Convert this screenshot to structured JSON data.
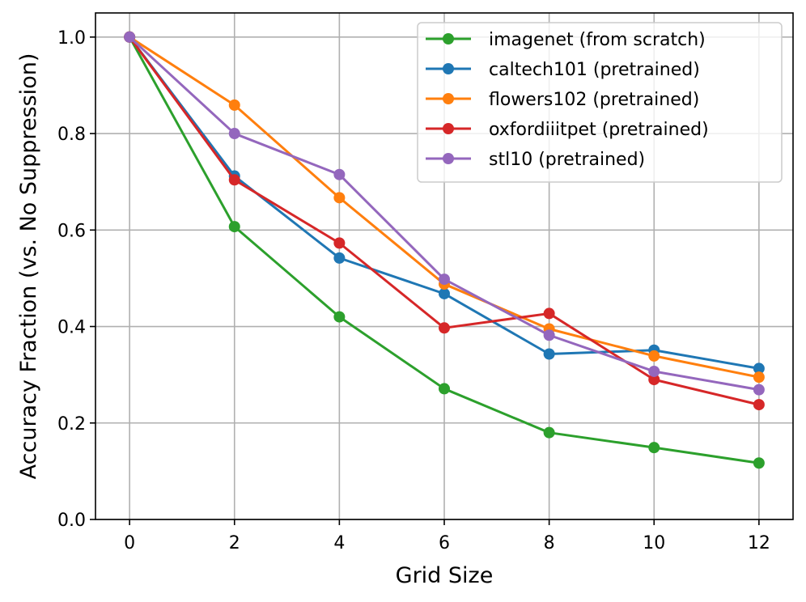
{
  "chart_data": {
    "type": "line",
    "title": "",
    "xlabel": "Grid Size",
    "ylabel": "Accuracy Fraction (vs. No Suppression)",
    "x": [
      0,
      2,
      4,
      6,
      8,
      10,
      12
    ],
    "xlim": [
      -0.65,
      12.65
    ],
    "ylim": [
      0.0,
      1.05
    ],
    "xticks": [
      0,
      2,
      4,
      6,
      8,
      10,
      12
    ],
    "xtick_labels": [
      "0",
      "2",
      "4",
      "6",
      "8",
      "10",
      "12"
    ],
    "yticks": [
      0.0,
      0.2,
      0.4,
      0.6,
      0.8,
      1.0
    ],
    "ytick_labels": [
      "0.0",
      "0.2",
      "0.4",
      "0.6",
      "0.8",
      "1.0"
    ],
    "grid": true,
    "legend_position": "top-right",
    "series": [
      {
        "name": "imagenet (from scratch)",
        "color": "#2ca02c",
        "values": [
          1.0,
          0.607,
          0.42,
          0.271,
          0.18,
          0.149,
          0.117
        ]
      },
      {
        "name": "caltech101 (pretrained)",
        "color": "#1f77b4",
        "values": [
          1.0,
          0.712,
          0.542,
          0.468,
          0.343,
          0.351,
          0.313
        ]
      },
      {
        "name": "flowers102 (pretrained)",
        "color": "#ff7f0e",
        "values": [
          1.0,
          0.859,
          0.667,
          0.488,
          0.395,
          0.339,
          0.295
        ]
      },
      {
        "name": "oxfordiiitpet (pretrained)",
        "color": "#d62728",
        "values": [
          1.0,
          0.704,
          0.573,
          0.397,
          0.427,
          0.29,
          0.238
        ]
      },
      {
        "name": "stl10 (pretrained)",
        "color": "#9467bd",
        "values": [
          1.0,
          0.8,
          0.715,
          0.498,
          0.382,
          0.307,
          0.269
        ]
      }
    ]
  }
}
